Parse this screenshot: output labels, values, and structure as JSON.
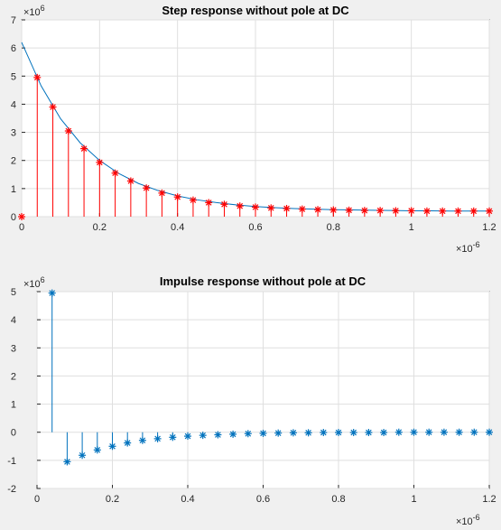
{
  "chart_data": [
    {
      "type": "line+stem",
      "title": "Step response without pole at DC",
      "xlim": [
        0,
        1.2e-06
      ],
      "ylim": [
        0,
        7000000.0
      ],
      "x_ticks": [
        0,
        0.2,
        0.4,
        0.6,
        0.8,
        1,
        1.2
      ],
      "y_ticks": [
        0,
        1,
        2,
        3,
        4,
        5,
        6,
        7
      ],
      "x_exponent_label": "×10",
      "x_exponent_power": "-6",
      "y_exponent_label": "×10",
      "y_exponent_power": "6",
      "grid": true,
      "series": [
        {
          "kind": "line",
          "color": "#0072bd",
          "x": [
            0,
            0.05,
            0.1,
            0.15,
            0.2,
            0.25,
            0.3,
            0.35,
            0.4,
            0.45,
            0.5,
            0.55,
            0.6,
            0.65,
            0.7,
            0.75,
            0.8,
            0.85,
            0.9,
            0.95,
            1.0,
            1.05,
            1.1,
            1.15,
            1.2
          ],
          "y": [
            6.2,
            4.65,
            3.48,
            2.63,
            2.0,
            1.53,
            1.18,
            0.93,
            0.74,
            0.6,
            0.5,
            0.42,
            0.36,
            0.32,
            0.29,
            0.27,
            0.25,
            0.24,
            0.23,
            0.22,
            0.21,
            0.21,
            0.2,
            0.2,
            0.2
          ]
        },
        {
          "kind": "stem",
          "color": "#ff0000",
          "marker": "*",
          "x": [
            0,
            0.04,
            0.08,
            0.12,
            0.16,
            0.2,
            0.24,
            0.28,
            0.32,
            0.36,
            0.4,
            0.44,
            0.48,
            0.52,
            0.56,
            0.6,
            0.64,
            0.68,
            0.72,
            0.76,
            0.8,
            0.84,
            0.88,
            0.92,
            0.96,
            1.0,
            1.04,
            1.08,
            1.12,
            1.16,
            1.2
          ],
          "y": [
            0,
            4.95,
            3.9,
            3.05,
            2.42,
            1.93,
            1.55,
            1.27,
            1.02,
            0.84,
            0.7,
            0.59,
            0.5,
            0.44,
            0.38,
            0.34,
            0.31,
            0.29,
            0.27,
            0.25,
            0.24,
            0.23,
            0.22,
            0.22,
            0.21,
            0.21,
            0.2,
            0.2,
            0.2,
            0.2,
            0.2
          ]
        }
      ]
    },
    {
      "type": "stem",
      "title": "Impulse response without pole at DC",
      "xlim": [
        0,
        1.2e-06
      ],
      "ylim": [
        -2000000.0,
        5000000.0
      ],
      "x_ticks": [
        0,
        0.2,
        0.4,
        0.6,
        0.8,
        1,
        1.2
      ],
      "y_ticks": [
        -2,
        -1,
        0,
        1,
        2,
        3,
        4,
        5
      ],
      "x_exponent_label": "×10",
      "x_exponent_power": "-6",
      "y_exponent_label": "×10",
      "y_exponent_power": "6",
      "grid": true,
      "series": [
        {
          "kind": "stem",
          "color": "#0072bd",
          "marker": "*",
          "x": [
            0.04,
            0.08,
            0.12,
            0.16,
            0.2,
            0.24,
            0.28,
            0.32,
            0.36,
            0.4,
            0.44,
            0.48,
            0.52,
            0.56,
            0.6,
            0.64,
            0.68,
            0.72,
            0.76,
            0.8,
            0.84,
            0.88,
            0.92,
            0.96,
            1.0,
            1.04,
            1.08,
            1.12,
            1.16,
            1.2
          ],
          "y": [
            4.95,
            -1.05,
            -0.82,
            -0.63,
            -0.5,
            -0.38,
            -0.29,
            -0.23,
            -0.18,
            -0.14,
            -0.11,
            -0.09,
            -0.07,
            -0.05,
            -0.04,
            -0.03,
            -0.02,
            -0.02,
            -0.01,
            -0.01,
            -0.01,
            -0.01,
            -0.01,
            0,
            0,
            0,
            0,
            0,
            0,
            0
          ]
        }
      ]
    }
  ]
}
